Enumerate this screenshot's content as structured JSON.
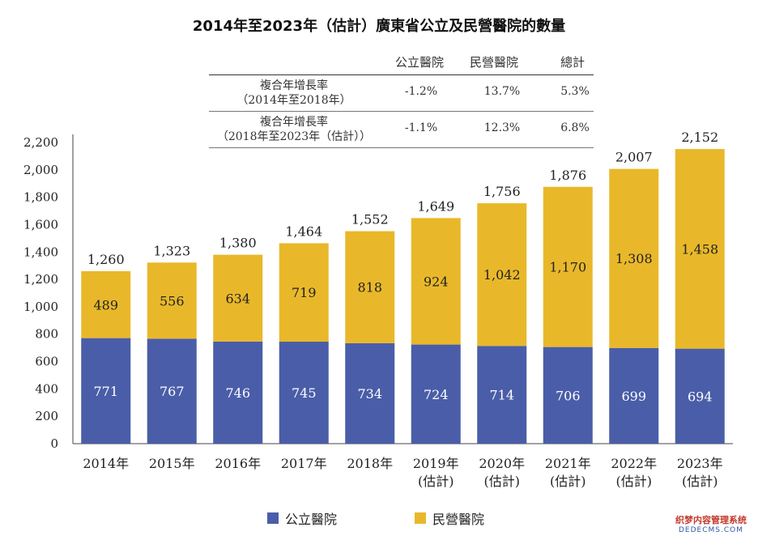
{
  "chart_data": {
    "type": "bar",
    "stacked": true,
    "title": "2014年至2023年（估計）廣東省公立及民營醫院的數量",
    "categories": [
      [
        "2014年"
      ],
      [
        "2015年"
      ],
      [
        "2016年"
      ],
      [
        "2017年"
      ],
      [
        "2018年"
      ],
      [
        "2019年",
        "(估計)"
      ],
      [
        "2020年",
        "(估計)"
      ],
      [
        "2021年",
        "(估計)"
      ],
      [
        "2022年",
        "(估計)"
      ],
      [
        "2023年",
        "(估計)"
      ]
    ],
    "series": [
      {
        "name": "公立醫院",
        "color": "#4a5da8",
        "values": [
          771,
          767,
          746,
          745,
          734,
          724,
          714,
          706,
          699,
          694
        ]
      },
      {
        "name": "民營醫院",
        "color": "#e9b82a",
        "values": [
          489,
          556,
          634,
          719,
          818,
          924,
          1042,
          1170,
          1308,
          1458
        ]
      }
    ],
    "totals": [
      "1,260",
      "1,323",
      "1,380",
      "1,464",
      "1,552",
      "1,649",
      "1,756",
      "1,876",
      "2,007",
      "2,152"
    ],
    "segment_labels": {
      "public": [
        "771",
        "767",
        "746",
        "745",
        "734",
        "724",
        "714",
        "706",
        "699",
        "694"
      ],
      "private": [
        "489",
        "556",
        "634",
        "719",
        "818",
        "924",
        "1,042",
        "1,170",
        "1,308",
        "1,458"
      ]
    },
    "yticks": [
      "0",
      "200",
      "400",
      "600",
      "800",
      "1,000",
      "1,200",
      "1,400",
      "1,600",
      "1,800",
      "2,000",
      "2,200"
    ],
    "ylim": [
      0,
      2200
    ],
    "legend_position": "bottom"
  },
  "cagr_table": {
    "headers": [
      "公立醫院",
      "民營醫院",
      "總計"
    ],
    "rows": [
      {
        "label_line1": "複合年增長率",
        "label_line2": "（2014年至2018年）",
        "values": [
          "-1.2%",
          "13.7%",
          "5.3%"
        ]
      },
      {
        "label_line1": "複合年增長率",
        "label_line2": "（2018年至2023年（估計））",
        "values": [
          "-1.1%",
          "12.3%",
          "6.8%"
        ]
      }
    ]
  },
  "watermark": {
    "line1": "织梦内容管理系统",
    "line2": "DEDECMS.COM"
  }
}
